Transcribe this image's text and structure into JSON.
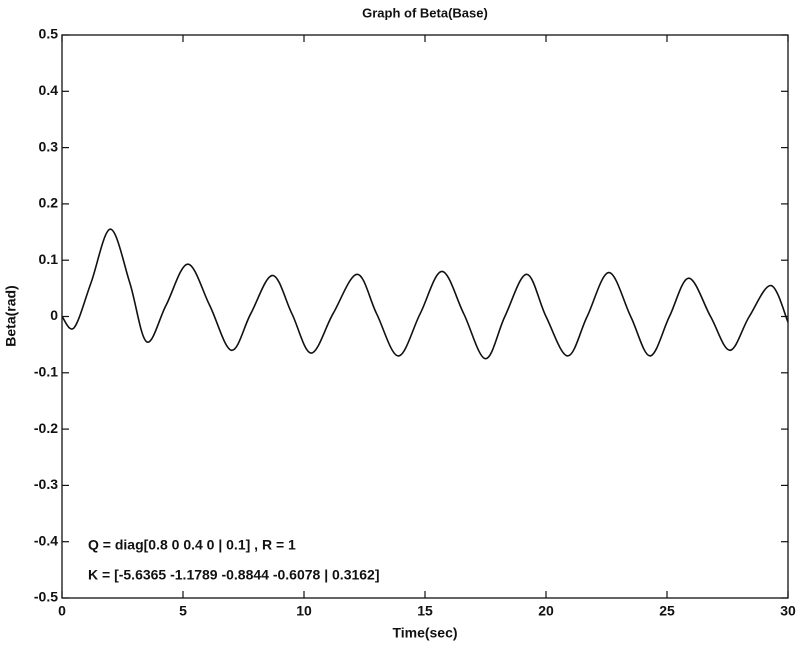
{
  "chart_data": {
    "type": "line",
    "title": "Graph of Beta(Base)",
    "x_label": "Time(sec)",
    "y_label": "Beta(rad)",
    "xlim": [
      0,
      30
    ],
    "xticks": [
      0,
      5,
      10,
      15,
      20,
      25,
      30
    ],
    "ylim": [
      -0.5,
      0.5
    ],
    "yticks": [
      0.5,
      0.4,
      0.3,
      0.2,
      0.1,
      0,
      -0.1,
      -0.2,
      -0.3,
      -0.4,
      -0.5
    ],
    "grid": false,
    "series": [
      {
        "color": "#111111",
        "x": [
          0,
          0.5,
          1.2,
          2,
          2.8,
          3.5,
          4.3,
          5.2,
          6.1,
          7,
          7.8,
          8.7,
          9.5,
          10.3,
          11.2,
          12.2,
          13,
          13.9,
          14.8,
          15.7,
          16.6,
          17.5,
          18.3,
          19.2,
          20,
          20.9,
          21.7,
          22.6,
          23.5,
          24.3,
          25.1,
          25.9,
          26.8,
          27.6,
          28.4,
          29.3,
          30
        ],
        "values": [
          0,
          -0.02,
          0.06,
          0.155,
          0.06,
          -0.045,
          0.02,
          0.093,
          0.02,
          -0.06,
          0.005,
          0.073,
          0.005,
          -0.065,
          0.005,
          0.075,
          0.005,
          -0.07,
          0.005,
          0.08,
          0.005,
          -0.075,
          0.0,
          0.075,
          0.0,
          -0.07,
          0.0,
          0.078,
          0.0,
          -0.07,
          0.0,
          0.068,
          0.0,
          -0.06,
          0.0,
          0.055,
          -0.01
        ]
      }
    ],
    "annotations": [
      "Q = diag[0.8 0 0.4 0 | 0.1] , R = 1",
      "K = [-5.6365 -1.1789 -0.8844 -0.6078 |  0.3162]"
    ]
  }
}
